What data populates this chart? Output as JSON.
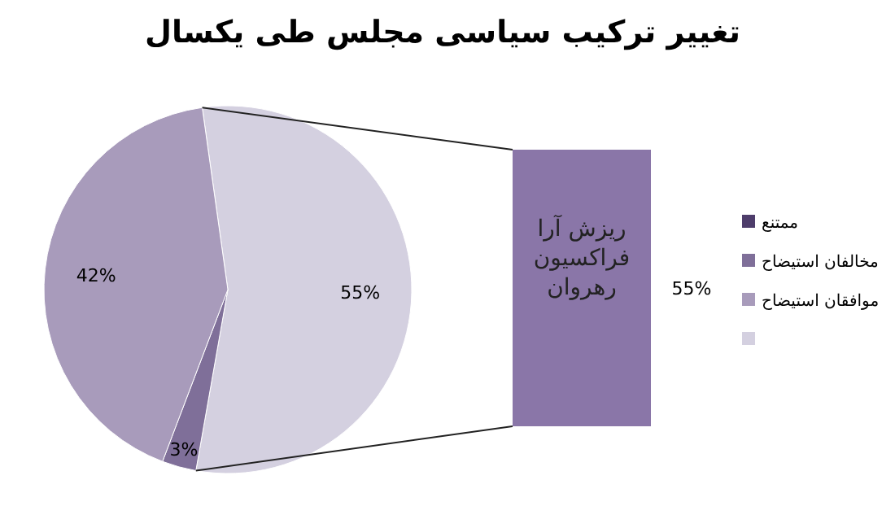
{
  "chart_data": [
    {
      "type": "pie",
      "title": "تغییر ترکیب سیاسی مجلس طی یکسال",
      "categories": [
        "ممتنع",
        "مخالفان استیضاح",
        "موافقان استیضاح",
        null
      ],
      "values": [
        null,
        3,
        42,
        55
      ],
      "colors": [
        "#4e3d6b",
        "#7f6f99",
        "#a89bbb",
        "#d4d0e0"
      ],
      "value_labels": [
        null,
        "3%",
        "42%",
        "55%"
      ],
      "legend": "right"
    },
    {
      "type": "other",
      "categories": [
        null
      ],
      "values": [
        55
      ],
      "colors": [
        "#8a76a8"
      ],
      "value_labels": [
        "55%"
      ],
      "annotations": [
        "ریزش آرا فراکسیون رهروان"
      ]
    }
  ]
}
